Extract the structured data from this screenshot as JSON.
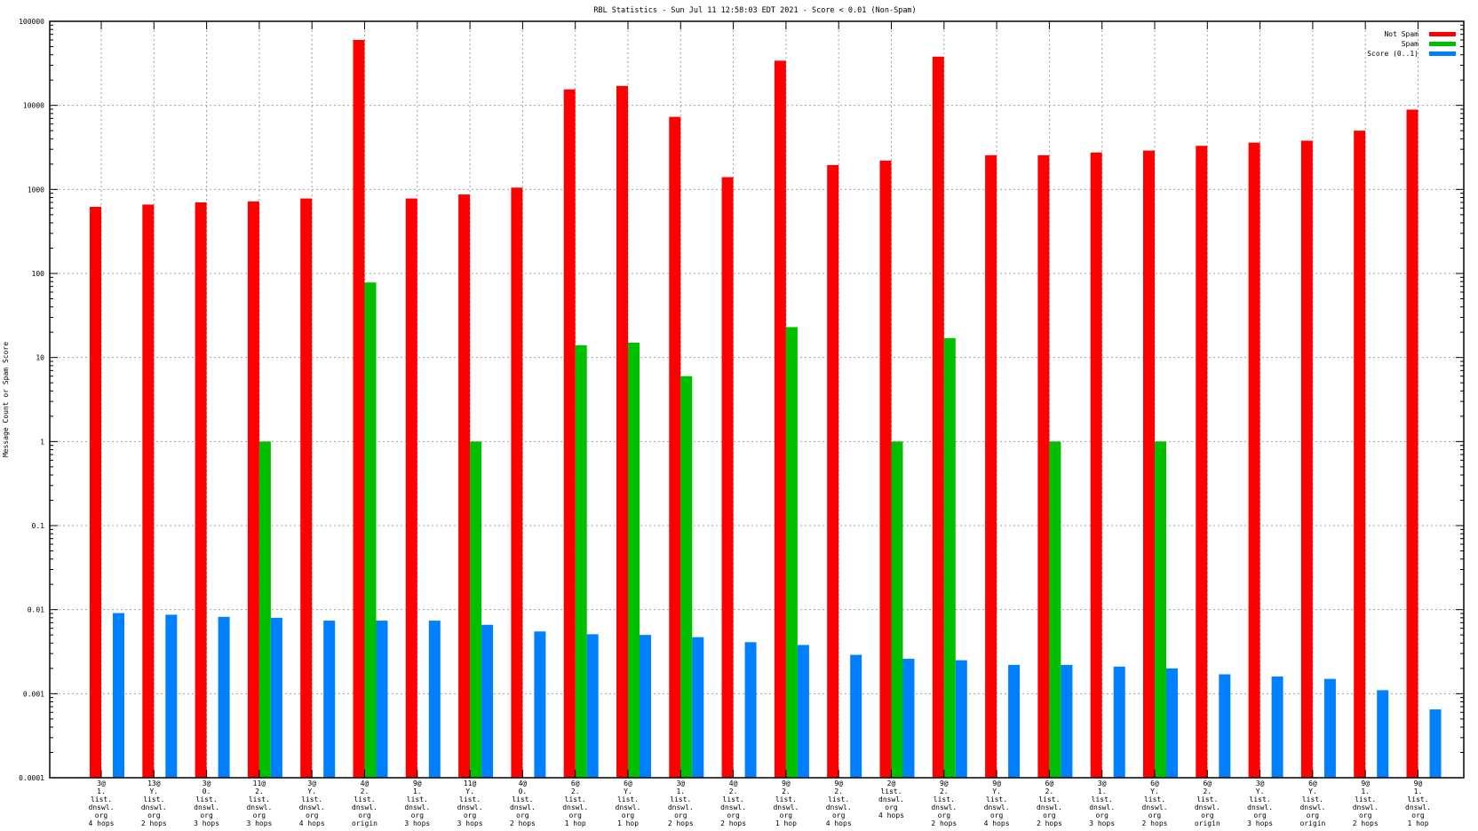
{
  "chart_data": {
    "type": "bar",
    "title": "RBL Statistics - Sun Jul 11 12:58:03 EDT 2021 - Score < 0.01 (Non-Spam)",
    "xlabel": "",
    "ylabel": "Message Count or Spam Score",
    "yscale": "log",
    "ylim": [
      0.0001,
      100000
    ],
    "yticks": [
      "100000",
      "10000",
      "1000",
      "100",
      "10",
      "1",
      "0.1",
      "0.01",
      "0.001",
      "0.0001"
    ],
    "grid": true,
    "legend_position": "top-right",
    "categories": [
      [
        "3@",
        "1.",
        "list.",
        "dnswl.",
        "org",
        "4 hops"
      ],
      [
        "13@",
        "Y.",
        "list.",
        "dnswl.",
        "org",
        "2 hops"
      ],
      [
        "3@",
        "0.",
        "list.",
        "dnswl.",
        "org",
        "3 hops"
      ],
      [
        "11@",
        "2.",
        "list.",
        "dnswl.",
        "org",
        "3 hops"
      ],
      [
        "3@",
        "Y.",
        "list.",
        "dnswl.",
        "org",
        "4 hops"
      ],
      [
        "4@",
        "2.",
        "list.",
        "dnswl.",
        "org",
        "origin"
      ],
      [
        "9@",
        "1.",
        "list.",
        "dnswl.",
        "org",
        "3 hops"
      ],
      [
        "11@",
        "Y.",
        "list.",
        "dnswl.",
        "org",
        "3 hops"
      ],
      [
        "4@",
        "0.",
        "list.",
        "dnswl.",
        "org",
        "2 hops"
      ],
      [
        "6@",
        "2.",
        "list.",
        "dnswl.",
        "org",
        "1 hop"
      ],
      [
        "6@",
        "Y.",
        "list.",
        "dnswl.",
        "org",
        "1 hop"
      ],
      [
        "3@",
        "1.",
        "list.",
        "dnswl.",
        "org",
        "2 hops"
      ],
      [
        "4@",
        "2.",
        "list.",
        "dnswl.",
        "org",
        "2 hops"
      ],
      [
        "9@",
        "2.",
        "list.",
        "dnswl.",
        "org",
        "1 hop"
      ],
      [
        "9@",
        "2.",
        "list.",
        "dnswl.",
        "org",
        "4 hops"
      ],
      [
        "2@",
        "list.",
        "dnswl.",
        "org",
        "4 hops"
      ],
      [
        "9@",
        "2.",
        "list.",
        "dnswl.",
        "org",
        "2 hops"
      ],
      [
        "9@",
        "Y.",
        "list.",
        "dnswl.",
        "org",
        "4 hops"
      ],
      [
        "6@",
        "2.",
        "list.",
        "dnswl.",
        "org",
        "2 hops"
      ],
      [
        "3@",
        "1.",
        "list.",
        "dnswl.",
        "org",
        "3 hops"
      ],
      [
        "6@",
        "Y.",
        "list.",
        "dnswl.",
        "org",
        "2 hops"
      ],
      [
        "6@",
        "2.",
        "list.",
        "dnswl.",
        "org",
        "origin"
      ],
      [
        "3@",
        "Y.",
        "list.",
        "dnswl.",
        "org",
        "3 hops"
      ],
      [
        "6@",
        "Y.",
        "list.",
        "dnswl.",
        "org",
        "origin"
      ],
      [
        "9@",
        "1.",
        "list.",
        "dnswl.",
        "org",
        "2 hops"
      ],
      [
        "9@",
        "1.",
        "list.",
        "dnswl.",
        "org",
        "1 hop"
      ]
    ],
    "series": [
      {
        "name": "Not Spam",
        "color": "#ff0000",
        "values": [
          620,
          660,
          700,
          720,
          780,
          60000,
          780,
          870,
          1050,
          15500,
          17000,
          7300,
          1400,
          34000,
          1950,
          2200,
          38000,
          2550,
          2550,
          2750,
          2900,
          3300,
          3600,
          3800,
          5000,
          8900
        ]
      },
      {
        "name": "Spam",
        "color": "#00c000",
        "values": [
          0,
          0,
          0,
          1,
          0,
          78,
          0,
          1,
          0,
          14,
          15,
          6,
          0,
          23,
          0,
          1,
          17,
          0,
          1,
          0,
          1,
          0,
          0,
          0,
          0,
          0
        ]
      },
      {
        "name": "Score (0..1)",
        "color": "#0080ff",
        "values": [
          0.0091,
          0.0087,
          0.0082,
          0.008,
          0.0074,
          0.0074,
          0.0074,
          0.0066,
          0.0055,
          0.0051,
          0.005,
          0.0047,
          0.0041,
          0.0038,
          0.0029,
          0.0026,
          0.0025,
          0.0022,
          0.0022,
          0.0021,
          0.002,
          0.0017,
          0.0016,
          0.0015,
          0.0011,
          0.00065
        ]
      }
    ]
  }
}
